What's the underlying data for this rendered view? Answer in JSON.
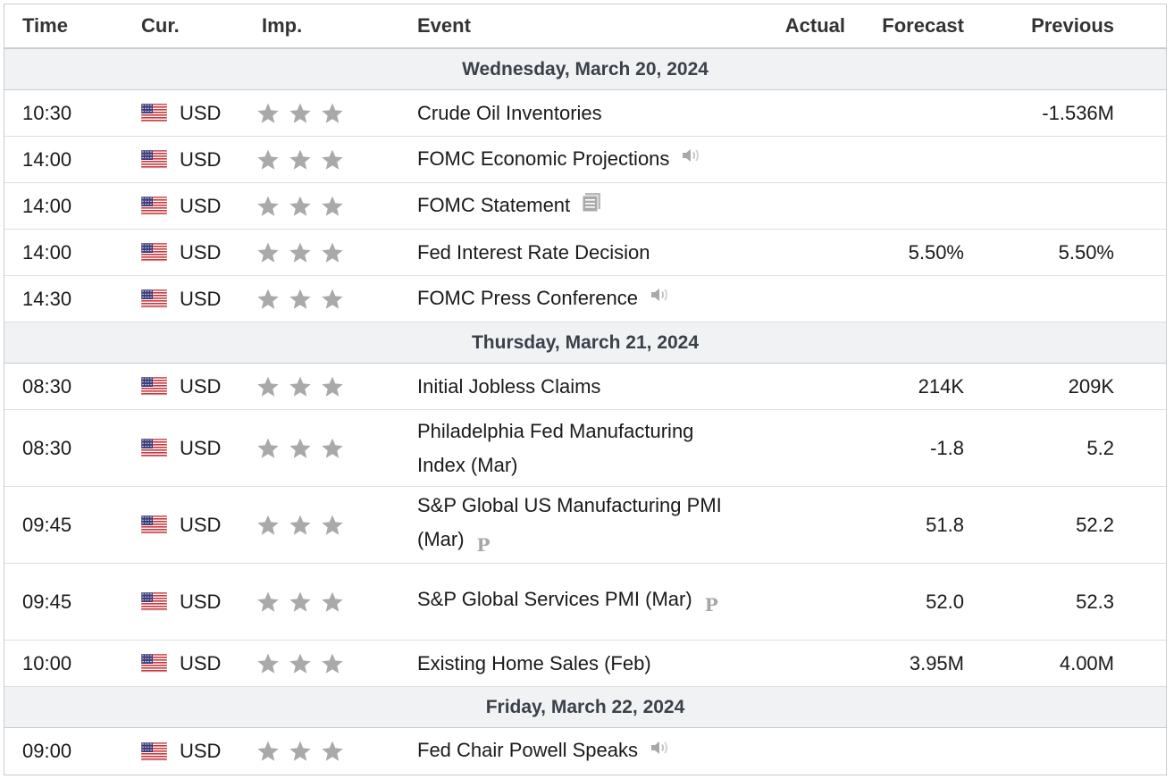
{
  "columns": {
    "time": "Time",
    "currency": "Cur.",
    "importance": "Imp.",
    "event": "Event",
    "actual": "Actual",
    "forecast": "Forecast",
    "previous": "Previous"
  },
  "colors": {
    "star": "#a9a9a9",
    "day_bg": "#f1f2f4",
    "border": "#c9ccd0"
  },
  "days": [
    {
      "label": "Wednesday, March 20, 2024",
      "events": [
        {
          "time": "10:30",
          "currency": "USD",
          "stars": 3,
          "event": "Crude Oil Inventories",
          "icon": "",
          "actual": "",
          "forecast": "",
          "previous": "-1.536M"
        },
        {
          "time": "14:00",
          "currency": "USD",
          "stars": 3,
          "event": "FOMC Economic Projections",
          "icon": "speaker-icon",
          "actual": "",
          "forecast": "",
          "previous": ""
        },
        {
          "time": "14:00",
          "currency": "USD",
          "stars": 3,
          "event": "FOMC Statement",
          "icon": "document-icon",
          "actual": "",
          "forecast": "",
          "previous": ""
        },
        {
          "time": "14:00",
          "currency": "USD",
          "stars": 3,
          "event": "Fed Interest Rate Decision",
          "icon": "",
          "actual": "",
          "forecast": "5.50%",
          "previous": "5.50%"
        },
        {
          "time": "14:30",
          "currency": "USD",
          "stars": 3,
          "event": "FOMC Press Conference",
          "icon": "speaker-icon",
          "actual": "",
          "forecast": "",
          "previous": ""
        }
      ]
    },
    {
      "label": "Thursday, March 21, 2024",
      "events": [
        {
          "time": "08:30",
          "currency": "USD",
          "stars": 3,
          "event": "Initial Jobless Claims",
          "icon": "",
          "actual": "",
          "forecast": "214K",
          "previous": "209K"
        },
        {
          "time": "08:30",
          "currency": "USD",
          "stars": 3,
          "event": "Philadelphia Fed Manufacturing Index (Mar)",
          "icon": "",
          "actual": "",
          "forecast": "-1.8",
          "previous": "5.2",
          "tall": true
        },
        {
          "time": "09:45",
          "currency": "USD",
          "stars": 3,
          "event": "S&P Global US Manufacturing PMI (Mar)",
          "icon": "preliminary-icon",
          "actual": "",
          "forecast": "51.8",
          "previous": "52.2",
          "tall": true
        },
        {
          "time": "09:45",
          "currency": "USD",
          "stars": 3,
          "event": "S&P Global Services PMI (Mar)",
          "icon": "preliminary-icon",
          "actual": "",
          "forecast": "52.0",
          "previous": "52.3",
          "tall": true
        },
        {
          "time": "10:00",
          "currency": "USD",
          "stars": 3,
          "event": "Existing Home Sales (Feb)",
          "icon": "",
          "actual": "",
          "forecast": "3.95M",
          "previous": "4.00M"
        }
      ]
    },
    {
      "label": "Friday, March 22, 2024",
      "events": [
        {
          "time": "09:00",
          "currency": "USD",
          "stars": 3,
          "event": "Fed Chair Powell Speaks",
          "icon": "speaker-icon",
          "actual": "",
          "forecast": "",
          "previous": ""
        }
      ]
    }
  ],
  "icon_glyphs": {
    "preliminary-icon": "P"
  }
}
